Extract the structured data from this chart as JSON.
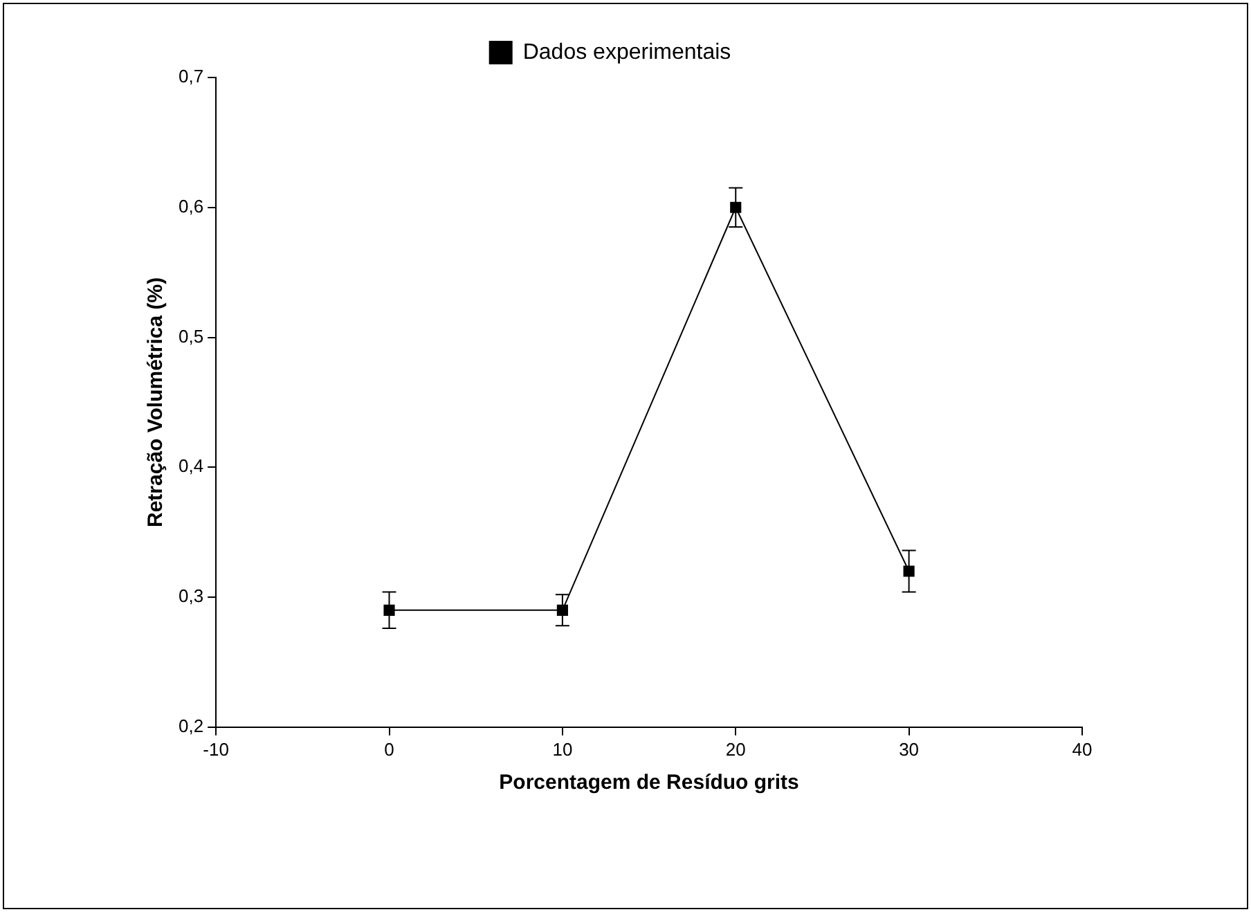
{
  "chart_data": {
    "type": "line",
    "xlabel": "Porcentagem de Resíduo grits",
    "ylabel": "Retração Volumétrica (%)",
    "x": [
      0,
      10,
      20,
      30
    ],
    "series": [
      {
        "name": "Dados experimentais",
        "color": "#000000",
        "values": [
          0.29,
          0.29,
          0.6,
          0.32
        ],
        "errors": [
          0.014,
          0.012,
          0.015,
          0.016
        ]
      }
    ],
    "xlim": [
      -10,
      40
    ],
    "xticks": [
      -10,
      0,
      10,
      20,
      30,
      40
    ],
    "ylim": [
      0.2,
      0.7
    ],
    "yticks": [
      {
        "value": 0.2,
        "label": "0,2"
      },
      {
        "value": 0.3,
        "label": "0,3"
      },
      {
        "value": 0.4,
        "label": "0,4"
      },
      {
        "value": 0.5,
        "label": "0,5"
      },
      {
        "value": 0.6,
        "label": "0,6"
      },
      {
        "value": 0.7,
        "label": "0,7"
      }
    ],
    "grid": false,
    "legend": "top",
    "marker": "square",
    "line_style": "solid"
  }
}
